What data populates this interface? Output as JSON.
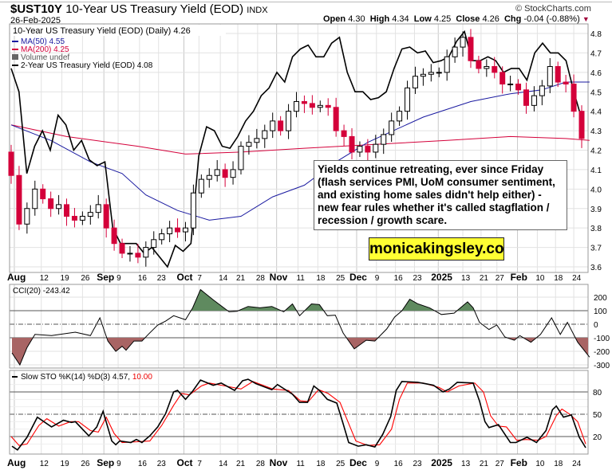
{
  "header": {
    "symbol": "$UST10Y",
    "name": "10-Year US Treasury Yield (EOD)",
    "exchange": "INDX",
    "date": "26-Feb-2025",
    "brand": "© StockCharts.com",
    "open_label": "Open",
    "open": "4.30",
    "high_label": "High",
    "high": "4.34",
    "low_label": "Low",
    "low": "4.25",
    "close_label": "Close",
    "close": "4.26",
    "chg_label": "Chg",
    "chg": "-0.04 (-0.88%)",
    "chg_arrow": "▼"
  },
  "legend": {
    "price": "10-Year US Treasury Yield (EOD) (Daily) 4.26",
    "ma50": "MA(50) 4.55",
    "ma200": "MA(200) 4.25",
    "volume": "Volume undef",
    "overlay": "2-Year US Treasury Yield (EOD) 4.08"
  },
  "annotation": {
    "text": "Yields continue retreating, ever since Friday (flash services PMI, UoM consumer sentiment, and existing home sales didn't help either) - new fear rules whether it's called stagflation / recession / growth scare.",
    "watermark": "monicakingsley.co"
  },
  "colors": {
    "up": "#000000",
    "down": "#d4003a",
    "ma50": "#1a1aa0",
    "ma200": "#d4003a",
    "overlay": "#000000",
    "cci_pos": "#5f8a5f",
    "cci_neg": "#a86464",
    "sto_d": "#ff0000",
    "watermark_bg": "#ffff33"
  },
  "chart_data": [
    {
      "type": "candlestick",
      "ylim": [
        3.6,
        4.8
      ],
      "y_ticks": [
        "3.6",
        "3.7",
        "3.8",
        "3.9",
        "4.0",
        "4.1",
        "4.2",
        "4.3",
        "4.4",
        "4.5",
        "4.6",
        "4.7",
        "4.8"
      ],
      "x_ticks": [
        {
          "label": "Aug",
          "bar": 0.4,
          "bold": true
        },
        {
          "label": "12",
          "bar": 3.8
        },
        {
          "label": "19",
          "bar": 6.4
        },
        {
          "label": "26",
          "bar": 9.0
        },
        {
          "label": "Sep",
          "bar": 11.7,
          "bold": true
        },
        {
          "label": "9",
          "bar": 13.5
        },
        {
          "label": "16",
          "bar": 16.2
        },
        {
          "label": "23",
          "bar": 18.6
        },
        {
          "label": "Oct",
          "bar": 21.8,
          "bold": true
        },
        {
          "label": "7",
          "bar": 23.7
        },
        {
          "label": "14",
          "bar": 26.4
        },
        {
          "label": "21",
          "bar": 28.6
        },
        {
          "label": "28",
          "bar": 31.1
        },
        {
          "label": "Nov",
          "bar": 33.5,
          "bold": true
        },
        {
          "label": "11",
          "bar": 36.2
        },
        {
          "label": "18",
          "bar": 38.7
        },
        {
          "label": "25",
          "bar": 41.2
        },
        {
          "label": "Dec",
          "bar": 43.6,
          "bold": true
        },
        {
          "label": "9",
          "bar": 46.1
        },
        {
          "label": "16",
          "bar": 48.5
        },
        {
          "label": "23",
          "bar": 50.9
        },
        {
          "label": "2025",
          "bar": 53.9,
          "bold": true
        },
        {
          "label": "13",
          "bar": 57.0
        },
        {
          "label": "21",
          "bar": 59.3
        },
        {
          "label": "27",
          "bar": 61.3
        },
        {
          "label": "Feb",
          "bar": 63.9,
          "bold": true
        },
        {
          "label": "10",
          "bar": 66.4
        },
        {
          "label": "18",
          "bar": 68.7
        },
        {
          "label": "24",
          "bar": 71.0
        }
      ],
      "close": [
        4.19,
        4.07,
        3.82,
        3.9,
        4.0,
        3.95,
        3.9,
        3.92,
        3.86,
        3.84,
        3.86,
        3.88,
        3.92,
        3.8,
        3.72,
        3.67,
        3.67,
        3.65,
        3.7,
        3.74,
        3.77,
        3.8,
        3.78,
        3.8,
        3.98,
        4.05,
        4.07,
        4.1,
        4.06,
        4.1,
        4.22,
        4.24,
        4.26,
        4.3,
        4.35,
        4.3,
        4.4,
        4.45,
        4.44,
        4.42,
        4.43,
        4.42,
        4.3,
        4.27,
        4.19,
        4.22,
        4.19,
        4.23,
        4.28,
        4.35,
        4.4,
        4.52,
        4.58,
        4.59,
        4.6,
        4.6,
        4.68,
        4.73,
        4.78,
        4.66,
        4.62,
        4.63,
        4.6,
        4.54,
        4.54,
        4.51,
        4.43,
        4.48,
        4.53,
        4.63,
        4.55,
        4.54,
        4.4,
        4.26
      ],
      "ma50": [
        [
          0,
          4.33
        ],
        [
          5,
          4.25
        ],
        [
          10,
          4.14
        ],
        [
          14,
          4.08
        ],
        [
          17,
          3.97
        ],
        [
          21,
          3.89
        ],
        [
          25,
          3.84
        ],
        [
          29,
          3.86
        ],
        [
          33,
          3.96
        ],
        [
          37,
          4.02
        ],
        [
          41,
          4.14
        ],
        [
          45,
          4.24
        ],
        [
          52,
          4.37
        ],
        [
          58,
          4.45
        ],
        [
          63,
          4.49
        ],
        [
          67,
          4.51
        ],
        [
          70,
          4.55
        ],
        [
          73,
          4.55
        ]
      ],
      "ma200": [
        [
          0,
          4.33
        ],
        [
          7,
          4.27
        ],
        [
          16,
          4.22
        ],
        [
          22,
          4.18
        ],
        [
          29,
          4.19
        ],
        [
          37,
          4.21
        ],
        [
          55,
          4.25
        ],
        [
          63,
          4.27
        ],
        [
          70,
          4.26
        ],
        [
          73,
          4.25
        ]
      ],
      "overlay_2y_on_price_axis": [
        4.62,
        4.5,
        4.08,
        4.22,
        4.3,
        4.2,
        4.38,
        4.33,
        4.2,
        4.25,
        4.15,
        4.12,
        4.14,
        3.8,
        3.72,
        3.72,
        3.72,
        3.67,
        3.7,
        3.65,
        3.6,
        3.71,
        3.68,
        3.72,
        4.17,
        4.32,
        4.3,
        4.22,
        4.21,
        4.27,
        4.35,
        4.4,
        4.48,
        4.52,
        4.6,
        4.55,
        4.68,
        4.72,
        4.74,
        4.68,
        4.68,
        4.75,
        4.78,
        4.6,
        4.5,
        4.5,
        4.46,
        4.47,
        4.5,
        4.62,
        4.72,
        4.73,
        4.7,
        4.71,
        4.65,
        4.66,
        4.68,
        4.76,
        4.81,
        4.66,
        4.66,
        4.68,
        4.66,
        4.6,
        4.62,
        4.62,
        4.56,
        4.7,
        4.75,
        4.7,
        4.7,
        4.66,
        4.5,
        4.36
      ]
    },
    {
      "type": "area",
      "title": "CCI(20) -243.42",
      "ylim": [
        -330,
        290
      ],
      "y_ticks": [
        "200",
        "100",
        "0",
        "-100",
        "-200",
        "-300"
      ],
      "ref_lines": [
        100,
        0,
        -100
      ],
      "values": [
        [
          0.1,
          -212
        ],
        [
          1.1,
          -300
        ],
        [
          2.0,
          -172
        ],
        [
          3.0,
          -75
        ],
        [
          5.1,
          -84
        ],
        [
          8.1,
          -59
        ],
        [
          10.0,
          -84
        ],
        [
          11.2,
          47
        ],
        [
          12.2,
          -124
        ],
        [
          13.2,
          -200
        ],
        [
          14.0,
          -163
        ],
        [
          14.5,
          -192
        ],
        [
          15.5,
          -124
        ],
        [
          16.5,
          -124
        ],
        [
          17.3,
          -75
        ],
        [
          18.5,
          -6
        ],
        [
          19.5,
          23
        ],
        [
          20.5,
          63
        ],
        [
          22.0,
          33
        ],
        [
          22.9,
          120
        ],
        [
          23.9,
          255
        ],
        [
          25.5,
          180
        ],
        [
          27.5,
          92
        ],
        [
          28.5,
          96
        ],
        [
          29.9,
          131
        ],
        [
          31.4,
          121
        ],
        [
          32.9,
          131
        ],
        [
          34.4,
          92
        ],
        [
          35.5,
          150
        ],
        [
          36.4,
          63
        ],
        [
          37.9,
          150
        ],
        [
          38.9,
          145
        ],
        [
          39.9,
          63
        ],
        [
          40.9,
          67
        ],
        [
          41.9,
          -65
        ],
        [
          43.3,
          -182
        ],
        [
          44.8,
          -118
        ],
        [
          45.9,
          -124
        ],
        [
          47.4,
          -35
        ],
        [
          48.4,
          53
        ],
        [
          49.3,
          98
        ],
        [
          50.3,
          184
        ],
        [
          51.3,
          151
        ],
        [
          52.8,
          121
        ],
        [
          54.3,
          72
        ],
        [
          55.9,
          82
        ],
        [
          57.6,
          165
        ],
        [
          58.3,
          121
        ],
        [
          59.1,
          14
        ],
        [
          60.3,
          -39
        ],
        [
          61.3,
          -6
        ],
        [
          62.3,
          -94
        ],
        [
          63.5,
          -118
        ],
        [
          64.2,
          -84
        ],
        [
          65.6,
          -133
        ],
        [
          66.8,
          -75
        ],
        [
          68.2,
          47
        ],
        [
          69.3,
          -75
        ],
        [
          70.2,
          14
        ],
        [
          71.5,
          -133
        ],
        [
          73,
          -243
        ]
      ]
    },
    {
      "type": "line",
      "title": "Slow STO %K(14) %D(3) 4.57,",
      "title_d": "10.00",
      "ylim": [
        -5,
        105
      ],
      "y_ticks": [
        "80",
        "50",
        "20"
      ],
      "ref_lines": [
        80,
        50,
        20
      ],
      "k": [
        [
          0.1,
          7
        ],
        [
          0.8,
          2
        ],
        [
          2.0,
          19
        ],
        [
          3.3,
          46
        ],
        [
          5.1,
          33
        ],
        [
          6.6,
          42
        ],
        [
          7.6,
          39
        ],
        [
          8.1,
          40
        ],
        [
          9.8,
          21
        ],
        [
          10.8,
          33
        ],
        [
          11.6,
          54
        ],
        [
          12.7,
          14
        ],
        [
          13.2,
          9
        ],
        [
          13.7,
          14
        ],
        [
          15.1,
          12
        ],
        [
          15.8,
          16
        ],
        [
          16.5,
          12
        ],
        [
          17.5,
          21
        ],
        [
          18.5,
          33
        ],
        [
          19.5,
          51
        ],
        [
          20.5,
          80
        ],
        [
          21.0,
          82
        ],
        [
          22.0,
          70
        ],
        [
          22.9,
          81
        ],
        [
          23.9,
          96
        ],
        [
          25.5,
          89
        ],
        [
          26.5,
          92
        ],
        [
          28.2,
          82
        ],
        [
          29.2,
          95
        ],
        [
          29.9,
          97
        ],
        [
          30.9,
          91
        ],
        [
          32.9,
          83
        ],
        [
          33.6,
          90
        ],
        [
          35.5,
          77
        ],
        [
          36.4,
          66
        ],
        [
          37.4,
          66
        ],
        [
          38.2,
          88
        ],
        [
          38.9,
          82
        ],
        [
          39.9,
          70
        ],
        [
          41.1,
          65
        ],
        [
          41.9,
          37
        ],
        [
          42.6,
          12
        ],
        [
          43.8,
          7
        ],
        [
          44.8,
          9
        ],
        [
          45.9,
          6
        ],
        [
          46.9,
          23
        ],
        [
          47.9,
          47
        ],
        [
          48.6,
          82
        ],
        [
          49.3,
          94
        ],
        [
          51.3,
          93
        ],
        [
          52.3,
          91
        ],
        [
          53.3,
          89
        ],
        [
          54.5,
          80
        ],
        [
          55.3,
          84
        ],
        [
          56.3,
          93
        ],
        [
          58.3,
          92
        ],
        [
          59.1,
          68
        ],
        [
          59.8,
          40
        ],
        [
          60.3,
          32
        ],
        [
          61.5,
          36
        ],
        [
          63.0,
          12
        ],
        [
          63.7,
          12
        ],
        [
          65.1,
          19
        ],
        [
          66.3,
          12
        ],
        [
          67.5,
          28
        ],
        [
          68.3,
          56
        ],
        [
          68.8,
          61
        ],
        [
          69.7,
          46
        ],
        [
          70.7,
          49
        ],
        [
          71.7,
          19
        ],
        [
          72.5,
          5
        ]
      ],
      "d": [
        [
          0,
          20
        ],
        [
          1,
          8
        ],
        [
          2,
          10
        ],
        [
          3.5,
          35
        ],
        [
          4.5,
          44
        ],
        [
          6,
          34
        ],
        [
          7.5,
          40
        ],
        [
          8.5,
          40
        ],
        [
          10,
          28
        ],
        [
          11,
          26
        ],
        [
          12,
          46
        ],
        [
          13,
          24
        ],
        [
          14,
          12
        ],
        [
          16,
          13
        ],
        [
          17.5,
          14
        ],
        [
          19,
          35
        ],
        [
          20.5,
          62
        ],
        [
          21.5,
          78
        ],
        [
          22.5,
          76
        ],
        [
          24,
          88
        ],
        [
          25,
          92
        ],
        [
          27,
          88
        ],
        [
          29,
          84
        ],
        [
          30.5,
          94
        ],
        [
          33,
          84
        ],
        [
          35,
          82
        ],
        [
          36.5,
          68
        ],
        [
          37.5,
          67
        ],
        [
          38.8,
          83
        ],
        [
          40,
          78
        ],
        [
          41.5,
          66
        ],
        [
          42.5,
          40
        ],
        [
          43.5,
          14
        ],
        [
          45,
          8
        ],
        [
          46.5,
          9
        ],
        [
          48,
          30
        ],
        [
          49,
          70
        ],
        [
          50,
          92
        ],
        [
          52,
          92
        ],
        [
          54,
          86
        ],
        [
          55,
          80
        ],
        [
          56.5,
          88
        ],
        [
          58.5,
          92
        ],
        [
          59.6,
          80
        ],
        [
          60.5,
          48
        ],
        [
          61.5,
          34
        ],
        [
          62.5,
          33
        ],
        [
          63.8,
          15
        ],
        [
          65,
          16
        ],
        [
          66.5,
          15
        ],
        [
          67.5,
          20
        ],
        [
          68.8,
          48
        ],
        [
          69.5,
          57
        ],
        [
          70.5,
          50
        ],
        [
          71.5,
          40
        ],
        [
          72.5,
          10
        ]
      ]
    }
  ]
}
